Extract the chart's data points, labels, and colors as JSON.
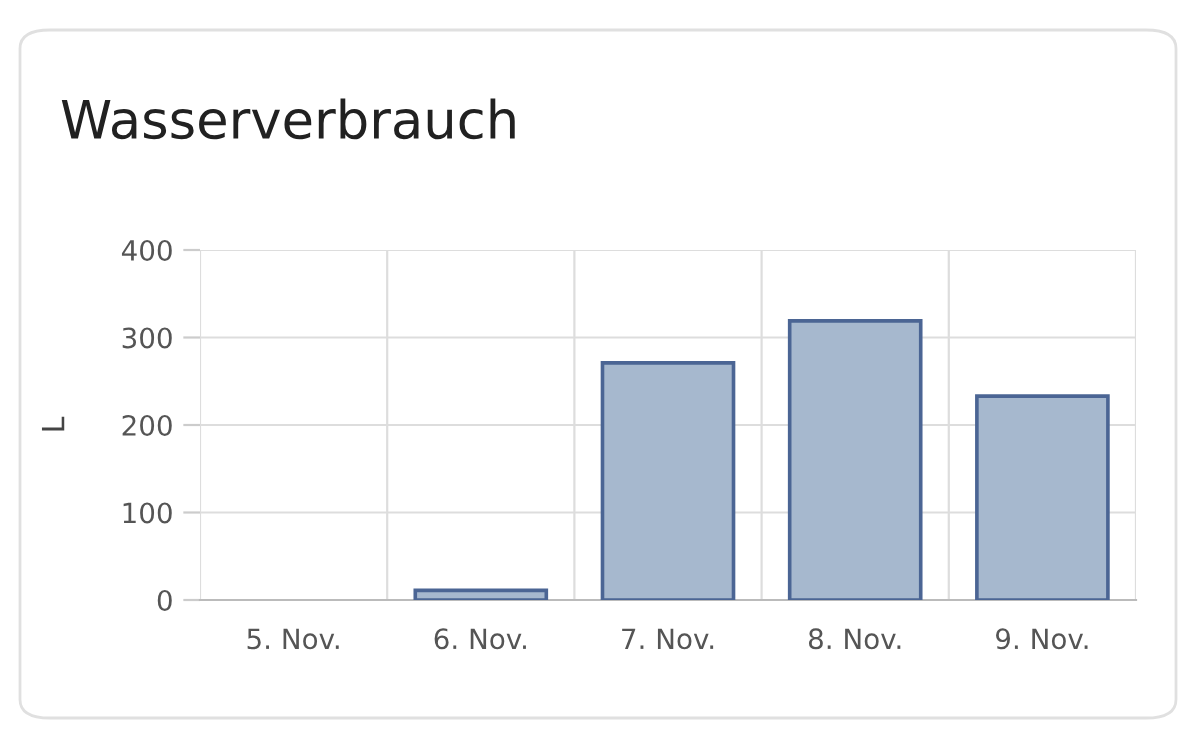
{
  "chart_data": {
    "type": "bar",
    "title": "Wasserverbrauch",
    "ylabel": "L",
    "categories": [
      "5. Nov.",
      "6. Nov.",
      "7. Nov.",
      "8. Nov.",
      "9. Nov."
    ],
    "values": [
      0,
      11,
      271,
      319,
      233
    ],
    "color": "#a6b8ce",
    "ylim": [
      0,
      400
    ],
    "yticks": [
      0,
      100,
      200,
      300,
      400
    ],
    "grid": true
  }
}
